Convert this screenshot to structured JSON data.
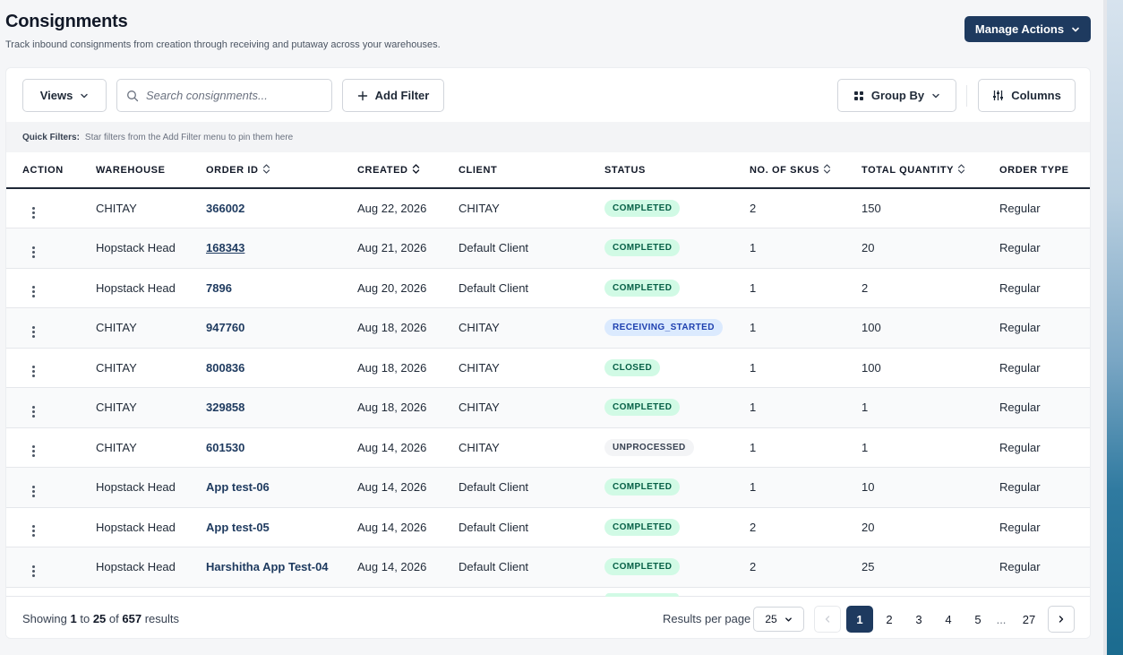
{
  "header": {
    "title": "Consignments",
    "subtitle": "Track inbound consignments from creation through receiving and putaway across your warehouses.",
    "manage_actions_label": "Manage Actions"
  },
  "toolbar": {
    "views_label": "Views",
    "search_placeholder": "Search consignments...",
    "add_filter_label": "Add Filter",
    "group_by_label": "Group By",
    "columns_label": "Columns"
  },
  "quick_filters": {
    "label": "Quick Filters:",
    "hint": "Star filters from the Add Filter menu to pin them here"
  },
  "table": {
    "columns": [
      "ACTION",
      "WAREHOUSE",
      "ORDER ID",
      "CREATED",
      "CLIENT",
      "STATUS",
      "NO. OF SKUS",
      "TOTAL QUANTITY",
      "ORDER TYPE"
    ],
    "rows": [
      {
        "warehouse": "CHITAY",
        "order_id": "366002",
        "created": "Aug 22, 2026",
        "client": "CHITAY",
        "status": "COMPLETED",
        "skus": "2",
        "quantity": "150",
        "order_type": "Regular"
      },
      {
        "warehouse": "Hopstack Head",
        "order_id": "168343",
        "created": "Aug 21, 2026",
        "client": "Default Client",
        "status": "COMPLETED",
        "skus": "1",
        "quantity": "20",
        "order_type": "Regular"
      },
      {
        "warehouse": "Hopstack Head",
        "order_id": "7896",
        "created": "Aug 20, 2026",
        "client": "Default Client",
        "status": "COMPLETED",
        "skus": "1",
        "quantity": "2",
        "order_type": "Regular"
      },
      {
        "warehouse": "CHITAY",
        "order_id": "947760",
        "created": "Aug 18, 2026",
        "client": "CHITAY",
        "status": "RECEIVING_STARTED",
        "skus": "1",
        "quantity": "100",
        "order_type": "Regular"
      },
      {
        "warehouse": "CHITAY",
        "order_id": "800836",
        "created": "Aug 18, 2026",
        "client": "CHITAY",
        "status": "CLOSED",
        "skus": "1",
        "quantity": "100",
        "order_type": "Regular"
      },
      {
        "warehouse": "CHITAY",
        "order_id": "329858",
        "created": "Aug 18, 2026",
        "client": "CHITAY",
        "status": "COMPLETED",
        "skus": "1",
        "quantity": "1",
        "order_type": "Regular"
      },
      {
        "warehouse": "CHITAY",
        "order_id": "601530",
        "created": "Aug 14, 2026",
        "client": "CHITAY",
        "status": "UNPROCESSED",
        "skus": "1",
        "quantity": "1",
        "order_type": "Regular"
      },
      {
        "warehouse": "Hopstack Head",
        "order_id": "App test-06",
        "created": "Aug 14, 2026",
        "client": "Default Client",
        "status": "COMPLETED",
        "skus": "1",
        "quantity": "10",
        "order_type": "Regular"
      },
      {
        "warehouse": "Hopstack Head",
        "order_id": "App test-05",
        "created": "Aug 14, 2026",
        "client": "Default Client",
        "status": "COMPLETED",
        "skus": "2",
        "quantity": "20",
        "order_type": "Regular"
      },
      {
        "warehouse": "Hopstack Head",
        "order_id": "Harshitha App Test-04",
        "created": "Aug 14, 2026",
        "client": "Default Client",
        "status": "COMPLETED",
        "skus": "2",
        "quantity": "25",
        "order_type": "Regular"
      }
    ]
  },
  "footer": {
    "showing_prefix": "Showing",
    "range_start": "1",
    "range_to": "to",
    "range_end": "25",
    "range_of": "of",
    "total": "657",
    "results_suffix": "results",
    "results_per_page_label": "Results per page",
    "per_page_value": "25",
    "pages": [
      "1",
      "2",
      "3",
      "4",
      "5",
      "...",
      "27"
    ],
    "current_page": "1"
  },
  "colors": {
    "primary": "#1e3a5f",
    "completed_bg": "#d1fae5",
    "receiving_bg": "#dbeafe",
    "unprocessed_bg": "#f3f4f6"
  }
}
